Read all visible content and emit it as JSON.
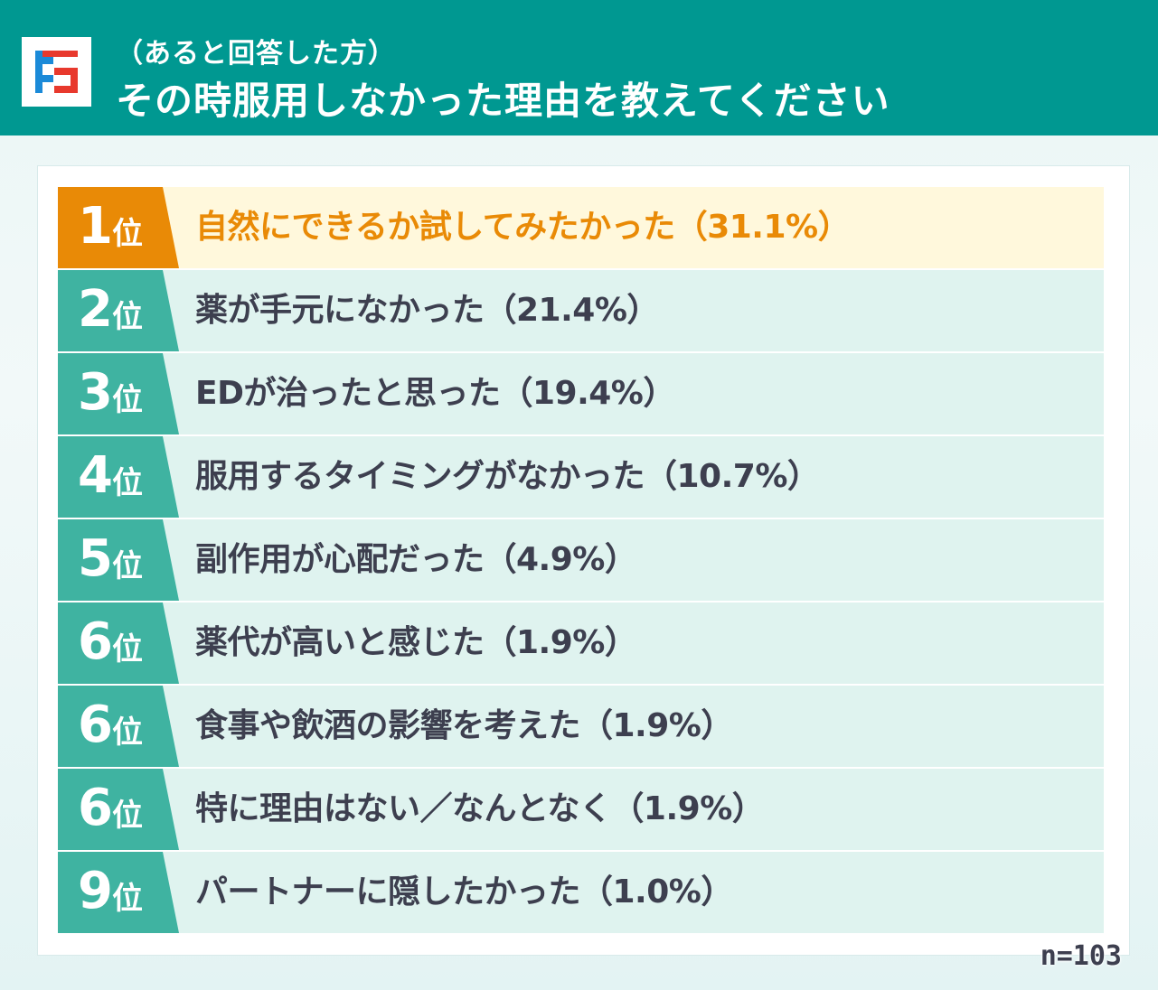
{
  "header": {
    "sub_title": "（あると回答した方）",
    "main_title": "その時服用しなかった理由を教えてください",
    "logo_icon": "brand-logo-icon",
    "colors": {
      "header_bg": "#009891",
      "logo_red": "#e8392d",
      "logo_blue": "#1b8ad8"
    }
  },
  "ranking": [
    {
      "rank": "1",
      "unit": "位",
      "text": "自然にできるか試してみたかった（31.1%）"
    },
    {
      "rank": "2",
      "unit": "位",
      "text": "薬が手元になかった（21.4%）"
    },
    {
      "rank": "3",
      "unit": "位",
      "text": "EDが治ったと思った（19.4%）"
    },
    {
      "rank": "4",
      "unit": "位",
      "text": "服用するタイミングがなかった（10.7%）"
    },
    {
      "rank": "5",
      "unit": "位",
      "text": "副作用が心配だった（4.9%）"
    },
    {
      "rank": "6",
      "unit": "位",
      "text": "薬代が高いと感じた（1.9%）"
    },
    {
      "rank": "6",
      "unit": "位",
      "text": "食事や飲酒の影響を考えた（1.9%）"
    },
    {
      "rank": "6",
      "unit": "位",
      "text": "特に理由はない／なんとなく（1.9%）"
    },
    {
      "rank": "9",
      "unit": "位",
      "text": "パートナーに隠したかった（1.0%）"
    }
  ],
  "colors": {
    "top_badge": "#e98a06",
    "badge": "#3fb3a1",
    "top_row_bg": "#fff8dc",
    "row_bg": "#dff3ef"
  },
  "sample_size": "n=103"
}
